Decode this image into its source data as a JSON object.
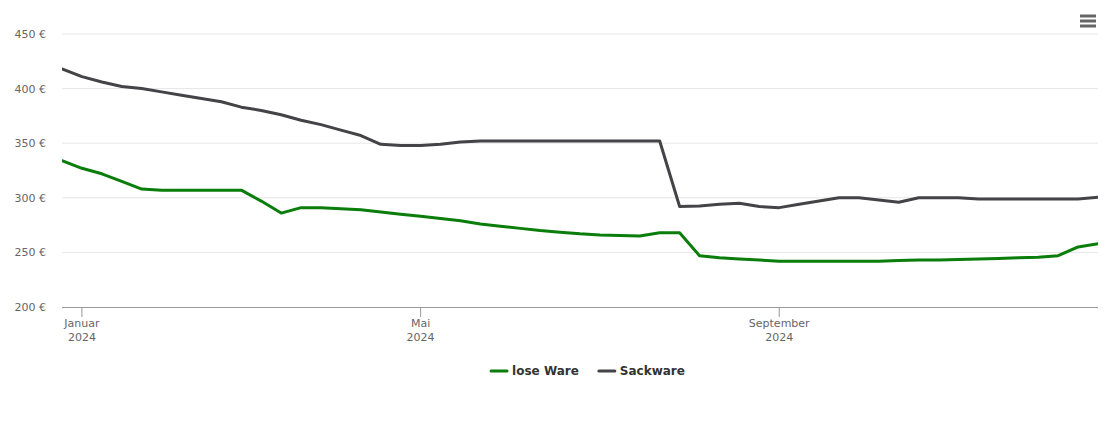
{
  "chart_data": {
    "type": "line",
    "categories": [
      null,
      "Januar\n2024",
      null,
      null,
      null,
      null,
      null,
      null,
      null,
      null,
      null,
      null,
      null,
      null,
      null,
      null,
      null,
      null,
      "Mai\n2024",
      null,
      null,
      null,
      null,
      null,
      null,
      null,
      null,
      null,
      null,
      null,
      null,
      null,
      null,
      null,
      null,
      null,
      "September\n2024",
      null,
      null,
      null,
      null,
      null,
      null,
      null,
      null,
      null,
      null,
      null,
      null,
      null,
      null,
      null,
      null
    ],
    "series": [
      {
        "name": "lose Ware",
        "color": "#0a7d0a",
        "values": [
          334,
          327,
          322,
          315,
          308,
          307,
          307,
          307,
          307,
          307,
          297,
          286,
          291,
          291,
          290,
          289,
          287,
          285,
          283,
          281,
          279,
          276,
          274,
          272,
          270,
          268.5,
          267,
          266,
          265.5,
          265,
          268,
          268,
          247,
          245,
          244,
          243,
          242,
          242,
          242,
          242,
          242,
          242,
          242.5,
          243,
          243,
          243.5,
          244,
          244.5,
          245,
          245.5,
          247,
          255,
          258
        ]
      },
      {
        "name": "Sackware",
        "color": "#434348",
        "values": [
          418,
          411,
          406,
          402,
          400,
          397,
          394,
          391,
          388,
          383,
          380,
          376,
          371,
          367,
          362,
          357,
          349,
          348,
          348,
          349,
          351,
          352,
          352,
          352,
          352,
          352,
          352,
          352,
          352,
          352,
          352,
          292,
          292.5,
          294,
          295,
          292,
          291,
          294,
          297,
          300,
          300,
          298,
          296,
          300,
          300,
          300,
          299,
          299,
          299,
          299,
          299,
          299,
          300.5
        ]
      }
    ],
    "ylim": [
      200,
      450
    ],
    "yticks": [
      {
        "value": 200,
        "label": "200 €"
      },
      {
        "value": 250,
        "label": "250 €"
      },
      {
        "value": 300,
        "label": "300 €"
      },
      {
        "value": 350,
        "label": "350 €"
      },
      {
        "value": 400,
        "label": "400 €"
      },
      {
        "value": 450,
        "label": "450 €"
      }
    ],
    "grid": true,
    "legend": "bottom"
  }
}
